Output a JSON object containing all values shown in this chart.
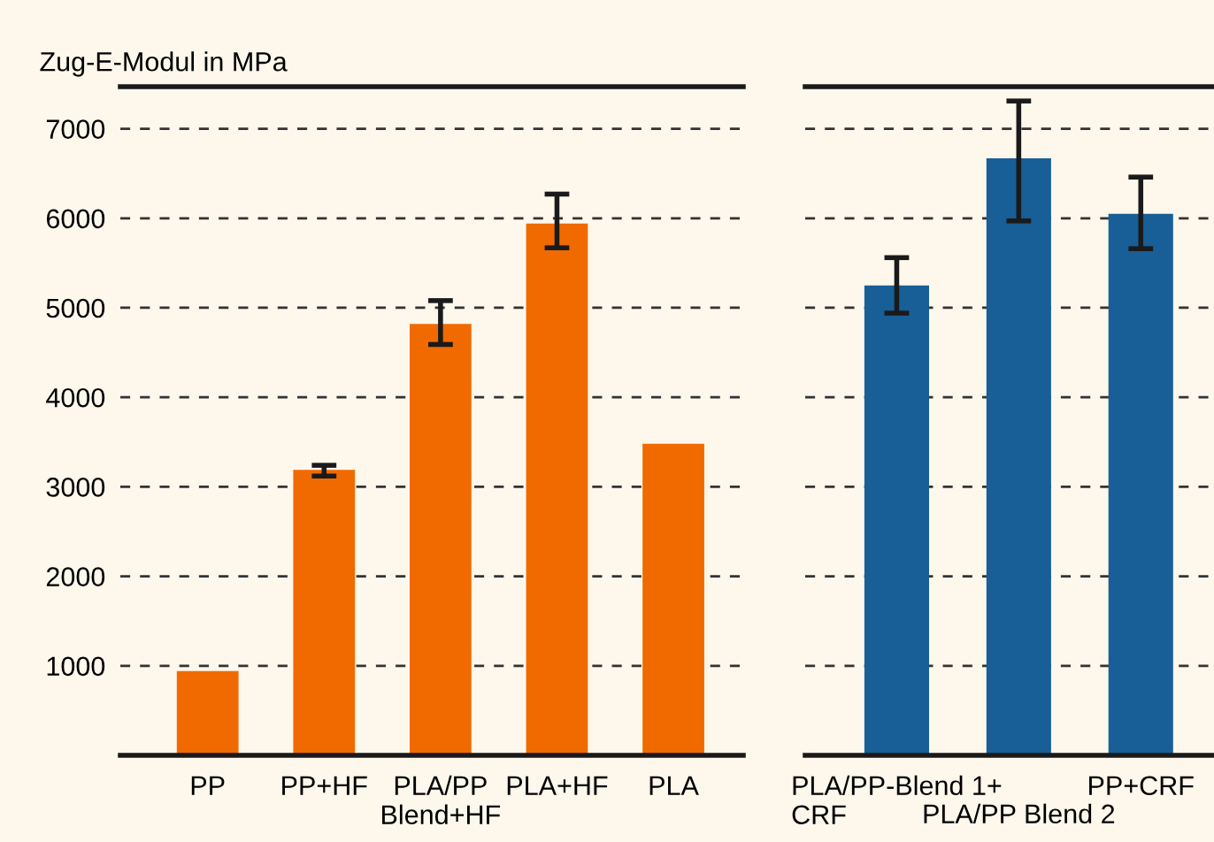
{
  "chart_data": [
    {
      "type": "bar",
      "ylabel": "Zug-E-Modul in MPa",
      "categories": [
        "PP",
        "PP+HF",
        "PLA/PP\nBlend+HF",
        "PLA+HF",
        "PLA"
      ],
      "values": [
        940,
        3190,
        4820,
        5940,
        3480
      ],
      "errors": [
        null,
        [
          3120,
          3240
        ],
        [
          4590,
          5080
        ],
        [
          5670,
          6270
        ],
        null
      ],
      "color": "#f06a00",
      "ylim": [
        0,
        7470
      ],
      "yticks": [
        1000,
        2000,
        3000,
        4000,
        5000,
        6000,
        7000
      ],
      "grid": "y"
    },
    {
      "type": "bar",
      "categories": [
        "PLA/PP-Blend 1+\nCRF",
        "PLA/PP Blend 2",
        "PP+CRF"
      ],
      "values": [
        5250,
        6670,
        6050
      ],
      "errors": [
        [
          4940,
          5560
        ],
        [
          5970,
          7310
        ],
        [
          5660,
          6460
        ]
      ],
      "color": "#175f96",
      "ylim": [
        0,
        7470
      ],
      "yticks": [
        1000,
        2000,
        3000,
        4000,
        5000,
        6000,
        7000
      ],
      "grid": "y",
      "tick_labels": "x"
    }
  ]
}
